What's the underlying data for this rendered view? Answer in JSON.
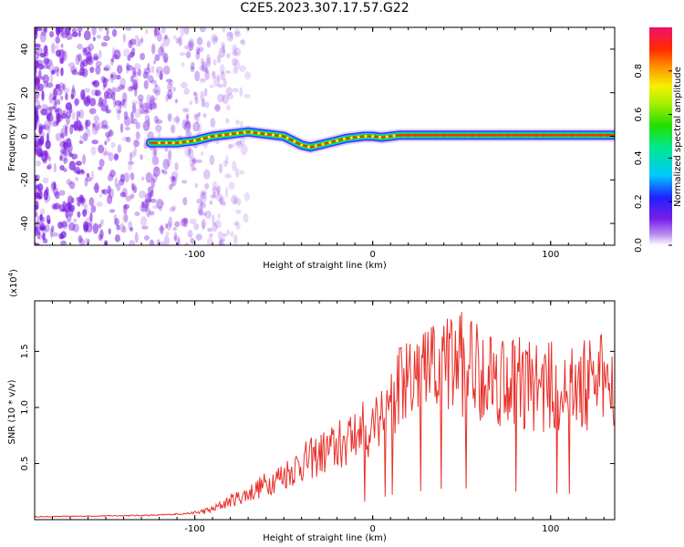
{
  "title": "C2E5.2023.307.17.57.G22",
  "colors": {
    "snr_line": "#e8302a",
    "noise": "#7b1fe0",
    "axis": "#000000"
  },
  "colorbar": {
    "label": "Normalized spectral amplitude",
    "ticks": [
      "0.0",
      "0.2",
      "0.4",
      "0.6",
      "0.8"
    ],
    "tick_values": [
      0.0,
      0.2,
      0.4,
      0.6,
      0.8
    ],
    "range": [
      0,
      1
    ]
  },
  "chart_data": [
    {
      "type": "heatmap",
      "title": "",
      "xlabel": "Height of straight line (km)",
      "ylabel": "Frequency (Hz)",
      "xlim": [
        -190,
        136
      ],
      "ylim": [
        -50,
        50
      ],
      "xticks": [
        -100,
        0,
        100
      ],
      "xtick_labels": [
        "-100",
        "0",
        "100"
      ],
      "yticks": [
        40,
        20,
        0,
        -20,
        -40
      ],
      "ytick_labels": [
        "40",
        "20",
        "0",
        "-20",
        "-40"
      ],
      "signal_ridge": {
        "x": [
          -125,
          -110,
          -100,
          -90,
          -80,
          -70,
          -60,
          -50,
          -45,
          -40,
          -35,
          -30,
          -25,
          -20,
          -15,
          -10,
          -5,
          0,
          5,
          10,
          15,
          20,
          40,
          60,
          80,
          100,
          120,
          135
        ],
        "y": [
          -3,
          -3,
          -2,
          0,
          1,
          2,
          1,
          0,
          -2,
          -4,
          -5,
          -4,
          -3,
          -2,
          -1,
          -0.5,
          0,
          0,
          -0.5,
          0,
          0.5,
          0.5,
          0.5,
          0.5,
          0.5,
          0.5,
          0.5,
          0.5
        ]
      },
      "noise_region_x": [
        -190,
        -90
      ]
    },
    {
      "type": "line",
      "title": "",
      "xlabel": "Height of straight line (km)",
      "ylabel": "SNR (10 * v/v)",
      "y_multiplier": "(x10",
      "y_multiplier_exp": "4",
      "y_multiplier_close": ")",
      "xlim": [
        -190,
        136
      ],
      "ylim": [
        0,
        19500
      ],
      "xticks": [
        -100,
        0,
        100
      ],
      "xtick_labels": [
        "-100",
        "0",
        "100"
      ],
      "yticks": [
        5000,
        10000,
        15000
      ],
      "ytick_labels": [
        "0.5",
        "1.0",
        "1.5"
      ],
      "envelope": {
        "x": [
          -190,
          -120,
          -100,
          -90,
          -80,
          -70,
          -60,
          -50,
          -40,
          -30,
          -20,
          -10,
          0,
          10,
          20,
          30,
          40,
          50,
          60,
          70,
          80,
          90,
          100,
          110,
          120,
          130,
          136
        ],
        "y": [
          250,
          400,
          600,
          900,
          1700,
          2300,
          3200,
          4000,
          5000,
          5800,
          6500,
          7500,
          8500,
          11000,
          12000,
          13000,
          13800,
          14000,
          13500,
          12700,
          12500,
          12000,
          11800,
          11500,
          12000,
          12500,
          12600
        ]
      },
      "noise_amplitude_fraction": 0.35
    }
  ]
}
